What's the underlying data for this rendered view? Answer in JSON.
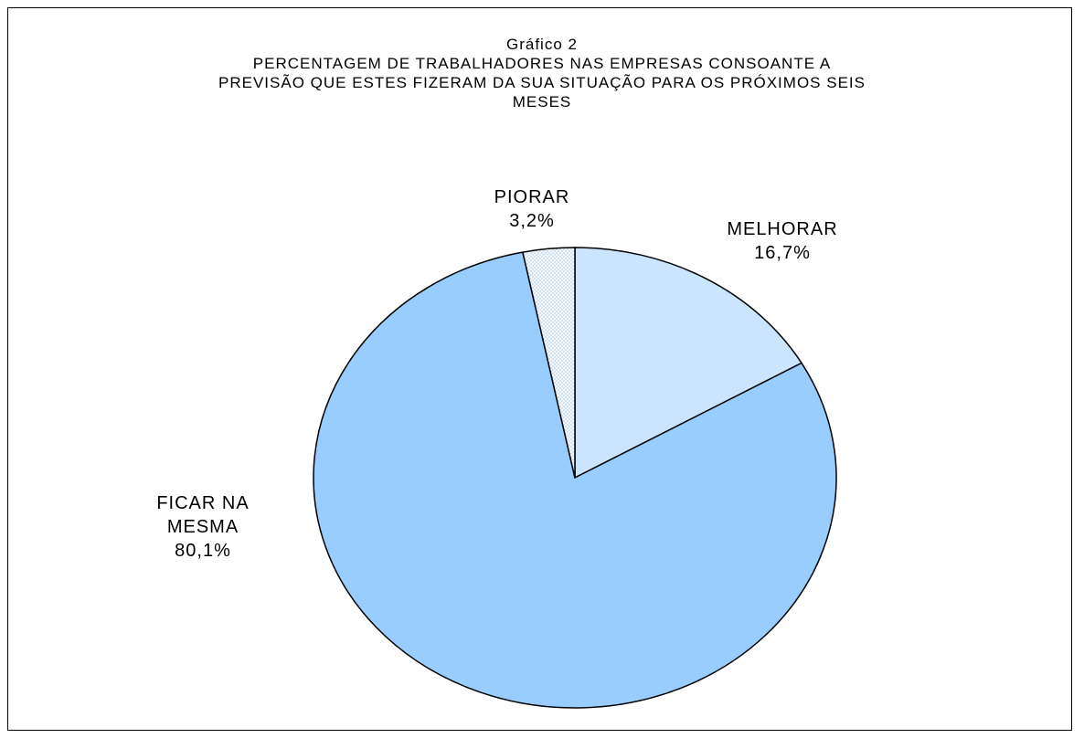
{
  "chart_data": {
    "type": "pie",
    "title": "Gráfico 2",
    "subtitle_lines": [
      "PERCENTAGEM DE TRABALHADORES NAS EMPRESAS CONSOANTE A",
      "PREVISÃO QUE ESTES FIZERAM DA SUA SITUAÇÃO PARA OS PRÓXIMOS SEIS",
      "MESES"
    ],
    "slices": [
      {
        "label_lines": [
          "MELHORAR"
        ],
        "value": 16.7,
        "value_label": "16,7%",
        "color": "#cce5ff"
      },
      {
        "label_lines": [
          "FICAR NA",
          "MESMA"
        ],
        "value": 80.1,
        "value_label": "80,1%",
        "color": "#99ccff"
      },
      {
        "label_lines": [
          "PIORAR"
        ],
        "value": 3.2,
        "value_label": "3,2%",
        "color": "#e8f2ff"
      }
    ],
    "start": "12 o'clock",
    "direction": "clockwise"
  }
}
